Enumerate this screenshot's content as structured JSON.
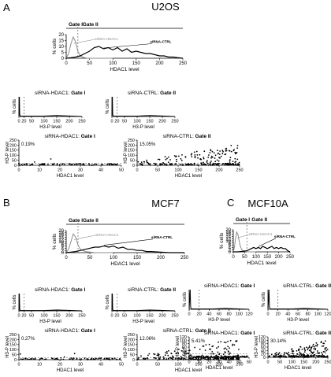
{
  "panels": [
    {
      "letter": "A",
      "title": "U2OS"
    },
    {
      "letter": "B",
      "title": "MCF7"
    },
    {
      "letter": "C",
      "title": "MCF10A"
    }
  ],
  "labels": {
    "gate_1": "Gate I",
    "gate_2": "Gate II",
    "pct_cells": "% cells",
    "h3p_level": "H3-P level",
    "hdac1_level": "HDAC1 level",
    "series_hdac1": "siRNA-HDAC1",
    "series_ctrl": "siRNA-CTRL",
    "sub_hdac1_prefix": "siRNA-HDAC1: ",
    "sub_ctrl_prefix": "siRNA-CTRL: "
  },
  "colors": {
    "axis": "#000000",
    "hdac1_line": "#8c8c8c",
    "ctrl_line": "#000000",
    "gate_line": "#777777"
  },
  "chart_data": [
    {
      "panel": "A",
      "type": "line",
      "title": "U2OS",
      "xlabel": "HDAC1 level",
      "ylabel": "% cells",
      "xlim": [
        0,
        250
      ],
      "ylim": [
        0,
        20
      ],
      "xticks": [
        0,
        50,
        100,
        150,
        200,
        250
      ],
      "yticks": [
        0,
        5,
        10,
        15,
        20
      ],
      "gate_boundary": 25,
      "series": [
        {
          "name": "siRNA-HDAC1",
          "x": [
            0,
            5,
            10,
            15,
            20,
            25,
            30,
            35,
            40,
            45,
            50,
            60,
            70,
            80,
            100
          ],
          "y": [
            0,
            4,
            12,
            18,
            14,
            6,
            2,
            1,
            0.5,
            0,
            0,
            0,
            0,
            0,
            0
          ]
        },
        {
          "name": "siRNA-CTRL",
          "x": [
            0,
            10,
            20,
            30,
            40,
            50,
            60,
            70,
            80,
            90,
            100,
            110,
            120,
            130,
            140,
            150,
            160,
            170,
            180,
            190,
            200,
            210,
            220,
            230,
            240,
            250
          ],
          "y": [
            0,
            0.5,
            1,
            2,
            4,
            6,
            9,
            10,
            8,
            9,
            7,
            9,
            6,
            8,
            5,
            6,
            5,
            4,
            4,
            3,
            2,
            2,
            1,
            1,
            0.5,
            0
          ]
        }
      ]
    },
    {
      "panel": "A",
      "type": "line",
      "title": "siRNA-HDAC1: Gate I",
      "xlabel": "H3-P level",
      "ylabel": "% cells",
      "xlim": [
        0,
        250
      ],
      "xticks": [
        0,
        20,
        50,
        100,
        150,
        200,
        250
      ],
      "gate_boundary": 20
    },
    {
      "panel": "A",
      "type": "line",
      "title": "siRNA-CTRL: Gate II",
      "xlabel": "H3-P level",
      "ylabel": "% cells",
      "xlim": [
        0,
        250
      ],
      "xticks": [
        0,
        20,
        50,
        100,
        150,
        200,
        250
      ],
      "gate_boundary": 20
    },
    {
      "panel": "A",
      "type": "scatter",
      "title": "siRNA-HDAC1: Gate I",
      "annotation": "0.19%",
      "xlabel": "HDAC1 level",
      "ylabel": "H3-P level",
      "xlim": [
        0,
        50
      ],
      "ylim": [
        0,
        250
      ],
      "xticks": [
        0,
        10,
        20,
        30,
        40,
        50
      ],
      "yticks": [
        0,
        50,
        100,
        150,
        200,
        250
      ],
      "threshold": 20
    },
    {
      "panel": "A",
      "type": "scatter",
      "title": "siRNA-CTRL: Gate II",
      "annotation": "15.05%",
      "xlabel": "HDAC1 level",
      "ylabel": "H3-P level",
      "xlim": [
        0,
        250
      ],
      "ylim": [
        0,
        250
      ],
      "xticks": [
        0,
        50,
        100,
        150,
        200,
        250
      ],
      "yticks": [
        0,
        50,
        100,
        150,
        200,
        250
      ],
      "threshold": 20
    },
    {
      "panel": "B",
      "type": "line",
      "title": "MCF7",
      "xlabel": "HDAC1 level",
      "ylabel": "% cells",
      "xlim": [
        0,
        250
      ],
      "ylim": [
        0,
        20
      ],
      "xticks": [
        0,
        50,
        100,
        150,
        200,
        250
      ],
      "yticks": [
        0,
        2,
        4,
        6,
        8,
        10,
        12,
        14,
        16,
        18,
        20
      ],
      "gate_boundary": 25,
      "series": [
        {
          "name": "siRNA-HDAC1",
          "x": [
            0,
            5,
            10,
            15,
            20,
            25,
            30,
            40,
            50,
            60,
            80,
            100
          ],
          "y": [
            0,
            3,
            10,
            17,
            14,
            7,
            3,
            1,
            0.5,
            0,
            0,
            0
          ]
        },
        {
          "name": "siRNA-CTRL",
          "x": [
            0,
            10,
            20,
            30,
            40,
            50,
            60,
            70,
            80,
            90,
            100,
            110,
            120,
            130,
            140,
            150,
            160,
            170,
            180,
            200,
            220,
            250
          ],
          "y": [
            0,
            0.5,
            1,
            2,
            3,
            4,
            5,
            5,
            6,
            5,
            6,
            4,
            5,
            3,
            3,
            2,
            2,
            1,
            1,
            0.5,
            0,
            0
          ]
        }
      ]
    },
    {
      "panel": "B",
      "type": "line",
      "title": "siRNA-HDAC1: Gate I",
      "xlabel": "H3-P level",
      "ylabel": "% cells",
      "xlim": [
        0,
        250
      ],
      "xticks": [
        0,
        20,
        50,
        100,
        150,
        200,
        250
      ],
      "gate_boundary": 20
    },
    {
      "panel": "B",
      "type": "line",
      "title": "siRNA-CTRL: Gate II",
      "xlabel": "H3-P level",
      "ylabel": "% cells",
      "xlim": [
        0,
        250
      ],
      "xticks": [
        0,
        20,
        50,
        100,
        150,
        200,
        250
      ],
      "gate_boundary": 20
    },
    {
      "panel": "B",
      "type": "scatter",
      "title": "siRNA-HDAC1: Gate I",
      "annotation": "0.27%",
      "xlabel": "HDAC1 level",
      "ylabel": "H3-P level",
      "xlim": [
        0,
        50
      ],
      "ylim": [
        0,
        250
      ],
      "xticks": [
        0,
        10,
        20,
        30,
        40,
        50
      ],
      "yticks": [
        0,
        50,
        100,
        150,
        200,
        250
      ],
      "threshold": 20
    },
    {
      "panel": "B",
      "type": "scatter",
      "title": "siRNA-CTRL: Gate II",
      "annotation": "12.06%",
      "xlabel": "HDAC1 level",
      "ylabel": "H3-P level",
      "xlim": [
        0,
        250
      ],
      "ylim": [
        0,
        250
      ],
      "xticks": [
        0,
        50,
        100,
        150,
        200,
        250
      ],
      "yticks": [
        0,
        50,
        100,
        150,
        200,
        250
      ],
      "threshold": 20
    },
    {
      "panel": "C",
      "type": "line",
      "title": "MCF10A",
      "xlabel": "HDAC1 level",
      "ylabel": "% cells",
      "xlim": [
        0,
        250
      ],
      "ylim": [
        0,
        20
      ],
      "xticks": [
        0,
        50,
        100,
        150,
        200,
        250
      ],
      "yticks": [
        0,
        2,
        4,
        6,
        8,
        10,
        12,
        14,
        16,
        18,
        20
      ],
      "gate_boundary": 60,
      "series": [
        {
          "name": "siRNA-HDAC1",
          "x": [
            0,
            5,
            10,
            15,
            20,
            25,
            30,
            35,
            40,
            45,
            50,
            60,
            70,
            80,
            100
          ],
          "y": [
            0,
            4,
            12,
            18,
            16,
            11,
            6,
            3,
            1.5,
            1,
            0.5,
            0,
            0,
            0,
            0
          ]
        },
        {
          "name": "siRNA-CTRL",
          "x": [
            0,
            20,
            40,
            60,
            70,
            80,
            90,
            100,
            110,
            120,
            130,
            140,
            150,
            160,
            170,
            180,
            190,
            200,
            210,
            220,
            230,
            240,
            250
          ],
          "y": [
            0,
            0,
            0.5,
            1,
            2,
            3,
            4,
            3,
            4,
            3,
            5,
            4,
            3,
            4,
            5,
            3,
            4,
            3,
            4,
            3,
            3,
            1,
            0
          ]
        }
      ]
    },
    {
      "panel": "C",
      "type": "line",
      "title": "siRNA-HDAC1: Gate I",
      "xlabel": "H3-P level",
      "ylabel": "% cells",
      "xlim": [
        0,
        120
      ],
      "xticks": [
        0,
        20,
        40,
        60,
        80,
        100,
        120
      ],
      "gate_boundary": 20
    },
    {
      "panel": "C",
      "type": "line",
      "title": "siRNA-CTRL: Gate II",
      "xlabel": "H3-P level",
      "ylabel": "% cells",
      "xlim": [
        0,
        120
      ],
      "xticks": [
        0,
        20,
        40,
        60,
        80,
        100,
        120
      ],
      "gate_boundary": 20
    },
    {
      "panel": "C",
      "type": "scatter",
      "title": "siRNA-HDAC1: Gate I",
      "annotation": "5.41%",
      "xlabel": "HDAC1 level",
      "ylabel": "H3-P level",
      "xlim": [
        0,
        60
      ],
      "ylim": [
        0,
        120
      ],
      "xticks": [
        0,
        10,
        20,
        30,
        40,
        50,
        60
      ],
      "yticks": [
        0,
        20,
        40,
        60,
        80,
        100,
        120
      ],
      "threshold": 20
    },
    {
      "panel": "C",
      "type": "scatter",
      "title": "siRNA-CTRL: Gate II",
      "annotation": "30.14%",
      "xlabel": "HDAC1 level",
      "ylabel": "H3-P level",
      "xlim": [
        0,
        250
      ],
      "ylim": [
        0,
        120
      ],
      "xticks": [
        0,
        50,
        100,
        150,
        200,
        250
      ],
      "yticks": [
        0,
        20,
        40,
        60,
        80,
        100,
        120
      ],
      "threshold": 20
    }
  ]
}
